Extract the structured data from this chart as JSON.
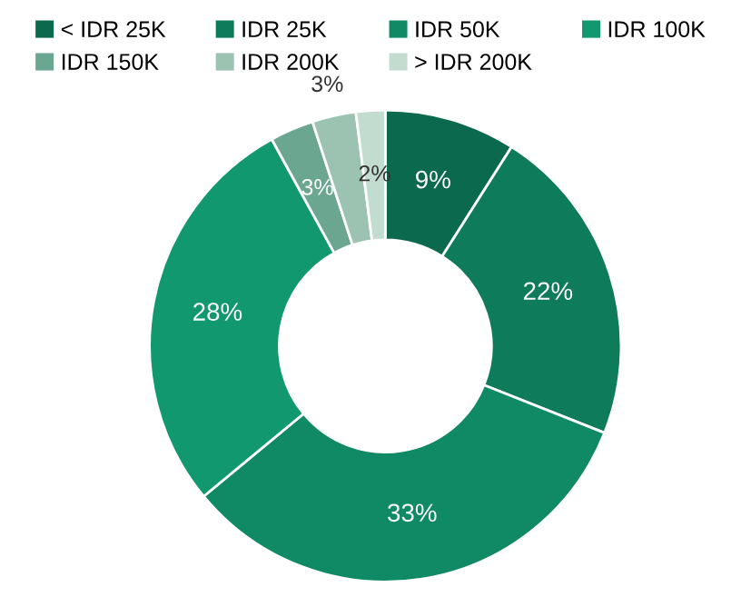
{
  "chart_data": {
    "type": "donut",
    "categories": [
      "< IDR 25K",
      "IDR 25K",
      "IDR 50K",
      "IDR 100K",
      "IDR 150K",
      "IDR 200K",
      "> IDR 200K"
    ],
    "values": [
      9,
      22,
      33,
      28,
      3,
      3,
      2
    ],
    "colors": [
      "#0b6a4e",
      "#0e7b5a",
      "#0f8a64",
      "#11986f",
      "#6aa690",
      "#9cc3b2",
      "#c3dcd0"
    ],
    "value_labels": [
      "9%",
      "22%",
      "33%",
      "28%",
      "3%",
      "3%",
      "2%"
    ],
    "legend": "top"
  }
}
